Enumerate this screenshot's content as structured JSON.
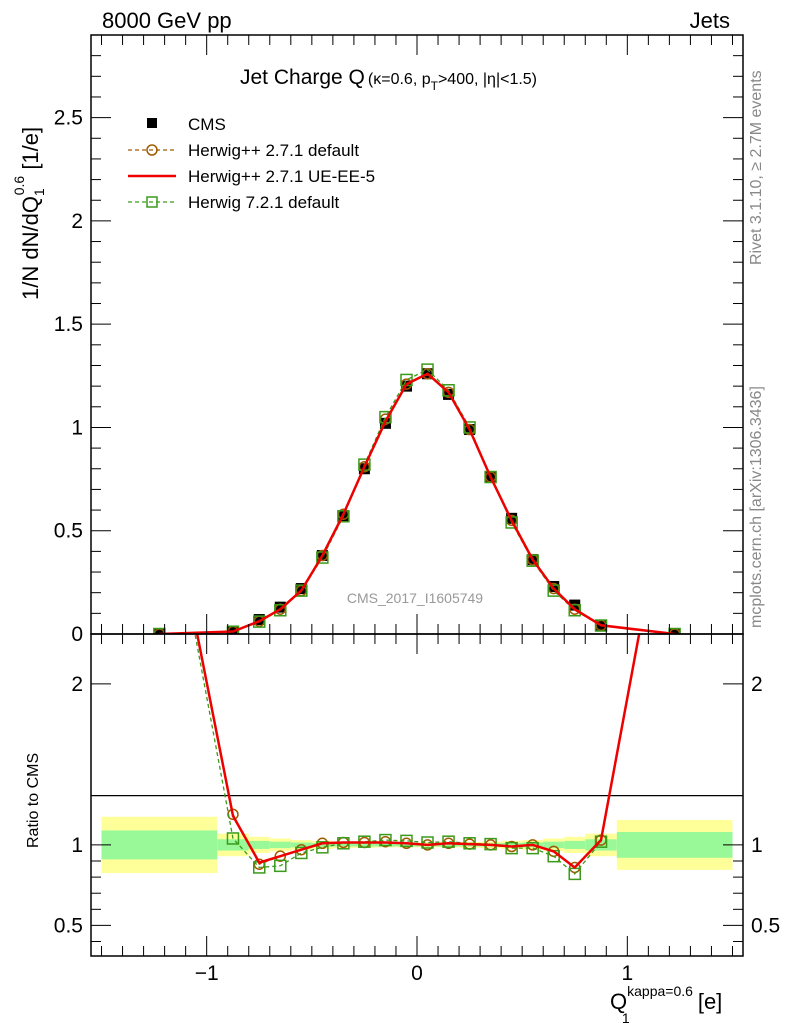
{
  "header": {
    "left": "8000 GeV pp",
    "right": "Jets"
  },
  "side_texts": {
    "rivet": "Rivet 3.1.10, ≥ 2.7M events",
    "mcplots": "mcplots.cern.ch [arXiv:1306.3436]"
  },
  "watermark": "CMS_2017_I1605749",
  "title": {
    "main": "Jet Charge Q",
    "paren_open": "(κ=0.6, p",
    "pt_sub": "T",
    "paren_close": ">400, |η|<1.5)"
  },
  "ylabel": {
    "prefix": "1/N dN/dQ",
    "sub": "1",
    "sup": "0.6",
    "suffix": " [1/e]"
  },
  "ratio_ylabel": "Ratio to CMS",
  "xlabel": {
    "base": "Q",
    "sub": "1",
    "sup": "kappa=0.6",
    "suffix": " [e]"
  },
  "colors": {
    "cms": "#000000",
    "herwig_pp_default": "#a05a00",
    "herwig_pp_ueee5": "#ee0000",
    "herwig7": "#3a9a1a",
    "band_inner": "#99f999",
    "band_outer": "#ffff99"
  },
  "chart_data": [
    {
      "type": "line",
      "panel": "main",
      "xlim": [
        -1.55,
        1.55
      ],
      "ylim": [
        0,
        2.9
      ],
      "yticks": [
        0,
        0.5,
        1,
        1.5,
        2,
        2.5
      ],
      "ytick_labels": [
        "0",
        "0.5",
        "1",
        "1.5",
        "2",
        "2.5"
      ],
      "legend_position": "top-left",
      "x": [
        -1.225,
        -0.875,
        -0.75,
        -0.65,
        -0.55,
        -0.45,
        -0.35,
        -0.25,
        -0.15,
        -0.05,
        0.05,
        0.15,
        0.25,
        0.35,
        0.45,
        0.55,
        0.65,
        0.75,
        0.875,
        1.225
      ],
      "series": [
        {
          "name": "CMS",
          "style": "markers",
          "values": [
            0.0,
            0.01,
            0.07,
            0.13,
            0.22,
            0.38,
            0.57,
            0.8,
            1.02,
            1.2,
            1.26,
            1.16,
            0.99,
            0.76,
            0.56,
            0.36,
            0.23,
            0.14,
            0.04,
            0.0
          ]
        },
        {
          "name": "Herwig++ 2.7.1 default",
          "style": "dashed-circle",
          "values": [
            0.0,
            0.012,
            0.062,
            0.12,
            0.21,
            0.38,
            0.58,
            0.81,
            1.04,
            1.21,
            1.26,
            1.17,
            0.99,
            0.76,
            0.55,
            0.36,
            0.22,
            0.12,
            0.042,
            0.0
          ]
        },
        {
          "name": "Herwig++ 2.7.1 UE-EE-5",
          "style": "solid",
          "values": [
            0.0,
            0.012,
            0.062,
            0.12,
            0.21,
            0.38,
            0.58,
            0.81,
            1.03,
            1.21,
            1.26,
            1.17,
            0.99,
            0.76,
            0.55,
            0.36,
            0.22,
            0.12,
            0.042,
            0.0
          ]
        },
        {
          "name": "Herwig 7.2.1 default",
          "style": "dashed-square",
          "values": [
            0.0,
            0.011,
            0.06,
            0.115,
            0.21,
            0.37,
            0.57,
            0.82,
            1.05,
            1.23,
            1.28,
            1.18,
            1.0,
            0.76,
            0.54,
            0.355,
            0.21,
            0.115,
            0.041,
            0.0
          ]
        }
      ]
    },
    {
      "type": "line",
      "panel": "ratio",
      "xlim": [
        -1.55,
        1.55
      ],
      "ylim": [
        0.31,
        2.31
      ],
      "yticks": [
        0.5,
        1,
        2
      ],
      "ytick_labels": [
        "0.5",
        "1",
        "2"
      ],
      "xticks": [
        -1,
        0,
        1
      ],
      "xtick_labels": [
        "−1",
        "0",
        "1"
      ],
      "bins": [
        [
          -1.5,
          -0.95
        ],
        [
          -0.95,
          -0.8
        ],
        [
          -0.8,
          -0.7
        ],
        [
          -0.7,
          -0.6
        ],
        [
          -0.6,
          -0.5
        ],
        [
          -0.5,
          -0.4
        ],
        [
          -0.4,
          -0.3
        ],
        [
          -0.3,
          -0.2
        ],
        [
          -0.2,
          -0.1
        ],
        [
          -0.1,
          0.0
        ],
        [
          0.0,
          0.1
        ],
        [
          0.1,
          0.2
        ],
        [
          0.2,
          0.3
        ],
        [
          0.3,
          0.4
        ],
        [
          0.4,
          0.5
        ],
        [
          0.5,
          0.6
        ],
        [
          0.6,
          0.7
        ],
        [
          0.7,
          0.8
        ],
        [
          0.8,
          0.95
        ],
        [
          0.95,
          1.5
        ]
      ],
      "band_inner_half": [
        0.09,
        0.035,
        0.025,
        0.02,
        0.015,
        0.012,
        0.01,
        0.01,
        0.01,
        0.01,
        0.01,
        0.01,
        0.01,
        0.01,
        0.012,
        0.015,
        0.02,
        0.025,
        0.035,
        0.08
      ],
      "band_outer_half": [
        0.175,
        0.07,
        0.05,
        0.04,
        0.03,
        0.025,
        0.02,
        0.018,
        0.015,
        0.015,
        0.015,
        0.015,
        0.018,
        0.02,
        0.025,
        0.03,
        0.04,
        0.05,
        0.07,
        0.155
      ],
      "x": [
        -1.225,
        -0.875,
        -0.75,
        -0.65,
        -0.55,
        -0.45,
        -0.35,
        -0.25,
        -0.15,
        -0.05,
        0.05,
        0.15,
        0.25,
        0.35,
        0.45,
        0.55,
        0.65,
        0.75,
        0.875,
        1.225
      ],
      "series": [
        {
          "name": "Herwig++ 2.7.1 default",
          "style": "dashed-circle",
          "values": [
            3.5,
            1.19,
            0.88,
            0.93,
            0.97,
            1.01,
            1.015,
            1.015,
            1.02,
            1.01,
            1.0,
            1.01,
            1.005,
            1.0,
            0.99,
            1.0,
            0.96,
            0.86,
            1.03,
            3.5
          ]
        },
        {
          "name": "Herwig++ 2.7.1 UE-EE-5",
          "style": "solid",
          "values": [
            3.5,
            1.18,
            0.89,
            0.93,
            0.97,
            1.01,
            1.015,
            1.015,
            1.015,
            1.01,
            1.0,
            1.01,
            1.005,
            1.0,
            0.99,
            1.0,
            0.96,
            0.86,
            1.03,
            3.5
          ]
        },
        {
          "name": "Herwig 7.2.1 default",
          "style": "dashed-square",
          "values": [
            3.5,
            1.04,
            0.86,
            0.87,
            0.95,
            0.985,
            1.01,
            1.02,
            1.03,
            1.025,
            1.015,
            1.02,
            1.01,
            1.005,
            0.98,
            0.98,
            0.93,
            0.82,
            1.02,
            3.5
          ]
        }
      ]
    }
  ]
}
